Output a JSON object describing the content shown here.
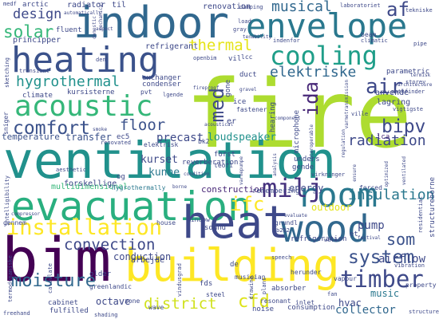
{
  "words": [
    {
      "text": "fire",
      "color": "#addc30"
    },
    {
      "text": "ventilation",
      "color": "#21918c"
    },
    {
      "text": "evacuation",
      "color": "#29af7f"
    },
    {
      "text": "indoor",
      "color": "#31688e"
    },
    {
      "text": "heating",
      "color": "#3b528b"
    },
    {
      "text": "envelope",
      "color": "#2a788e"
    },
    {
      "text": "bim",
      "color": "#440154"
    },
    {
      "text": "building",
      "color": "#fde725"
    },
    {
      "text": "heat",
      "color": "#3e4989"
    },
    {
      "text": "wood",
      "color": "#31688e"
    },
    {
      "text": "acoustic",
      "color": "#35b779"
    },
    {
      "text": "room",
      "color": "#2a788e"
    },
    {
      "text": "cooling",
      "color": "#1f9e89"
    },
    {
      "text": "installation",
      "color": "#fde725"
    },
    {
      "text": "comfort",
      "color": "#3b528b"
    },
    {
      "text": "timber",
      "color": "#3e4989"
    },
    {
      "text": "moisture",
      "color": "#31688e"
    },
    {
      "text": "system",
      "color": "#3b528b"
    },
    {
      "text": "district",
      "color": "#d0e11c"
    },
    {
      "text": "cfd",
      "color": "#dde318"
    },
    {
      "text": "hygrothermal",
      "color": "#21918c"
    },
    {
      "text": "air",
      "color": "#3e4989"
    },
    {
      "text": "solar",
      "color": "#35b779"
    },
    {
      "text": "design",
      "color": "#3e4989"
    },
    {
      "text": "musical",
      "color": "#31688e"
    },
    {
      "text": "thermal",
      "color": "#e5e419"
    },
    {
      "text": "elektriske",
      "color": "#31688e"
    },
    {
      "text": "floor",
      "color": "#3b528b"
    },
    {
      "text": "bipv",
      "color": "#3e4989"
    },
    {
      "text": "radiation",
      "color": "#3e4989"
    },
    {
      "text": "insulation",
      "color": "#2a788e"
    },
    {
      "text": "convection",
      "color": "#3e4989"
    },
    {
      "text": "milj",
      "color": "#46327e"
    },
    {
      "text": "ifc",
      "color": "#fde725"
    },
    {
      "text": "af",
      "color": "#3e4989"
    },
    {
      "text": "ida",
      "color": "#482878"
    },
    {
      "text": "med",
      "color": "#3e4989"
    },
    {
      "text": "som",
      "color": "#3b528b"
    },
    {
      "text": "pump",
      "color": "#3e4989"
    },
    {
      "text": "airflow",
      "color": "#3e4989"
    },
    {
      "text": "collector",
      "color": "#31688e"
    },
    {
      "text": "loudspeaker",
      "color": "#21918c"
    },
    {
      "text": "precast",
      "color": "#3e4989"
    },
    {
      "text": "kurset",
      "color": "#3e4989"
    },
    {
      "text": "kunne",
      "color": "#2a788e"
    },
    {
      "text": "transfer",
      "color": "#3b528b"
    },
    {
      "text": "temperature",
      "color": "#3b528b"
    },
    {
      "text": "conduction",
      "color": "#3e4989"
    },
    {
      "text": "octave",
      "color": "#3e4989"
    },
    {
      "text": "music",
      "color": "#2a788e"
    },
    {
      "text": "hvac",
      "color": "#3e4989"
    },
    {
      "text": "outdoor",
      "color": "#e5e419"
    },
    {
      "text": "energy",
      "color": "#3e4989"
    },
    {
      "text": "construction",
      "color": "#482878"
    },
    {
      "text": "renovation",
      "color": "#3e4989"
    },
    {
      "text": "refrigerant",
      "color": "#3e4989"
    },
    {
      "text": "principper",
      "color": "#3e4989"
    },
    {
      "text": "radiator",
      "color": "#3e4989"
    },
    {
      "text": "arctic",
      "color": "#3e4989"
    },
    {
      "text": "multidimensional",
      "color": "#35b779"
    },
    {
      "text": "forskellige",
      "color": "#3e4989"
    },
    {
      "text": "hygrothermally",
      "color": "#2a788e"
    },
    {
      "text": "lca",
      "color": "#482878"
    },
    {
      "text": "lagring",
      "color": "#3e4989"
    },
    {
      "text": "anvende",
      "color": "#3e4989"
    },
    {
      "text": "parametric",
      "color": "#3e4989"
    },
    {
      "text": "climate",
      "color": "#3e4989"
    },
    {
      "text": "kursisterne",
      "color": "#3e4989"
    },
    {
      "text": "exchanger",
      "color": "#3e4989"
    },
    {
      "text": "condenser",
      "color": "#3e4989"
    },
    {
      "text": "fluent",
      "color": "#3e4989"
    },
    {
      "text": "beam",
      "color": "#3e4989"
    },
    {
      "text": "tekniske",
      "color": "#3e4989"
    },
    {
      "text": "pathfinder",
      "color": "#3e4989"
    },
    {
      "text": "vigtigste",
      "color": "#3e4989"
    },
    {
      "text": "storey",
      "color": "#3e4989"
    },
    {
      "text": "reverberation",
      "color": "#3e4989"
    },
    {
      "text": "remembering",
      "color": "#3e4989"
    },
    {
      "text": "refrigeration",
      "color": "#3e4989"
    },
    {
      "text": "absorber",
      "color": "#3e4989"
    },
    {
      "text": "consumption",
      "color": "#3e4989"
    },
    {
      "text": "noise",
      "color": "#3e4989"
    },
    {
      "text": "sound",
      "color": "#3e4989"
    },
    {
      "text": "window",
      "color": "#3e4989"
    },
    {
      "text": "house",
      "color": "#3e4989"
    },
    {
      "text": "grundl",
      "color": "#3e4989"
    },
    {
      "text": "older",
      "color": "#3e4989"
    },
    {
      "text": "cabinet",
      "color": "#3e4989"
    },
    {
      "text": "fulfilled",
      "color": "#3e4989"
    },
    {
      "text": "greenlandic",
      "color": "#3e4989"
    },
    {
      "text": "wave",
      "color": "#3e4989"
    },
    {
      "text": "zone",
      "color": "#3e4989"
    },
    {
      "text": "steel",
      "color": "#3e4989"
    },
    {
      "text": "fds",
      "color": "#3e4989"
    },
    {
      "text": "resonant",
      "color": "#3e4989"
    },
    {
      "text": "musician",
      "color": "#3e4989"
    },
    {
      "text": "inlet",
      "color": "#3e4989"
    },
    {
      "text": "vapour",
      "color": "#3e4989"
    },
    {
      "text": "property",
      "color": "#3e4989"
    },
    {
      "text": "vibration",
      "color": "#3e4989"
    },
    {
      "text": "structureborne",
      "color": "#3e4989"
    },
    {
      "text": "forced",
      "color": "#3e4989"
    },
    {
      "text": "duct",
      "color": "#3e4989"
    },
    {
      "text": "ice",
      "color": "#3e4989"
    },
    {
      "text": "fastener",
      "color": "#3e4989"
    },
    {
      "text": "unders",
      "color": "#3e4989"
    },
    {
      "text": "gende",
      "color": "#3e4989"
    },
    {
      "text": "virkninger",
      "color": "#3e4989"
    },
    {
      "text": "teori",
      "color": "#3e4989"
    },
    {
      "text": "forst",
      "color": "#3e4989"
    },
    {
      "text": "elektrisk",
      "color": "#3e4989"
    },
    {
      "text": "gone",
      "color": "#3e4989"
    },
    {
      "text": "hearing",
      "color": "#3e4989"
    },
    {
      "text": "microphone",
      "color": "#3e4989"
    },
    {
      "text": "og",
      "color": "#3e4989"
    },
    {
      "text": "et",
      "color": "#3e4989"
    },
    {
      "text": "er",
      "color": "#3e4989"
    },
    {
      "text": "de",
      "color": "#3e4989"
    },
    {
      "text": "ec5",
      "color": "#3e4989"
    },
    {
      "text": "bk2",
      "color": "#3e4989"
    },
    {
      "text": "vil",
      "color": "#3e4989"
    },
    {
      "text": "lcc",
      "color": "#3e4989"
    },
    {
      "text": "pvt",
      "color": "#3e4989"
    },
    {
      "text": "til",
      "color": "#3e4989"
    },
    {
      "text": "fan",
      "color": "#3e4989"
    },
    {
      "text": "water",
      "color": "#3e4989"
    },
    {
      "text": "openbim",
      "color": "#3e4989"
    },
    {
      "text": "den",
      "color": "#3e4989"
    },
    {
      "text": "gray",
      "color": "#3e4989"
    },
    {
      "text": "load",
      "color": "#3e4989"
    },
    {
      "text": "pipe",
      "color": "#3e4989"
    },
    {
      "text": "indenfor",
      "color": "#3e4989"
    },
    {
      "text": "climatic",
      "color": "#3e4989"
    },
    {
      "text": "laboratoriet",
      "color": "#3e4989"
    },
    {
      "text": "damping",
      "color": "#3e4989"
    },
    {
      "text": "ville",
      "color": "#3e4989"
    },
    {
      "text": "transient",
      "color": "#3e4989"
    },
    {
      "text": "sketching",
      "color": "#3e4989"
    },
    {
      "text": "aesthetic",
      "color": "#3e4989"
    },
    {
      "text": "intelligibility",
      "color": "#3e4989"
    },
    {
      "text": "renovated",
      "color": "#3e4989"
    },
    {
      "text": "gennem",
      "color": "#3e4989"
    },
    {
      "text": "termodynamiske",
      "color": "#3e4989"
    },
    {
      "text": "calculate",
      "color": "#3e4989"
    },
    {
      "text": "medf",
      "color": "#3e4989"
    },
    {
      "text": "sniger",
      "color": "#3e4989"
    },
    {
      "text": "arbejde",
      "color": "#3e4989"
    },
    {
      "text": "herunder",
      "color": "#3e4989"
    },
    {
      "text": "festival",
      "color": "#3e4989"
    },
    {
      "text": "residential",
      "color": "#3e4989"
    },
    {
      "text": "structure",
      "color": "#3e4989"
    },
    {
      "text": "speech",
      "color": "#3e4989"
    },
    {
      "text": "plant",
      "color": "#3e4989"
    },
    {
      "text": "b282",
      "color": "#3e4989"
    },
    {
      "text": "compressor",
      "color": "#3e4989"
    },
    {
      "text": "freehand",
      "color": "#3e4989"
    },
    {
      "text": "vindusgrad",
      "color": "#3e4989"
    },
    {
      "text": "drawing",
      "color": "#3e4989"
    },
    {
      "text": "domestic",
      "color": "#3e4989"
    },
    {
      "text": "mechanical",
      "color": "#3e4989"
    },
    {
      "text": "shading",
      "color": "#3e4989"
    },
    {
      "text": "smoke",
      "color": "#3e4989"
    },
    {
      "text": "automatically",
      "color": "#3e4989"
    },
    {
      "text": "tenability",
      "color": "#3e4989"
    },
    {
      "text": "lgende",
      "color": "#3e4989"
    },
    {
      "text": "component",
      "color": "#3e4989"
    },
    {
      "text": "termisk",
      "color": "#3e4989"
    },
    {
      "text": "architecture",
      "color": "#3e4989"
    },
    {
      "text": "interoperable",
      "color": "#3e4989"
    },
    {
      "text": "regulation",
      "color": "#3e4989"
    },
    {
      "text": "varmetransmission",
      "color": "#3e4989"
    },
    {
      "text": "analysis",
      "color": "#3e4989"
    },
    {
      "text": "varmepumpe",
      "color": "#3e4989"
    },
    {
      "text": "condition",
      "color": "#3e4989"
    },
    {
      "text": "fireproof",
      "color": "#3e4989"
    },
    {
      "text": "borne",
      "color": "#3e4989"
    },
    {
      "text": "acoustical",
      "color": "#3e4989"
    },
    {
      "text": "evaluate",
      "color": "#3e4989"
    },
    {
      "text": "ensure",
      "color": "#3e4989"
    },
    {
      "text": "optimized",
      "color": "#3e4989"
    },
    {
      "text": "ventilated",
      "color": "#3e4989"
    },
    {
      "text": "gravel",
      "color": "#3e4989"
    },
    {
      "text": "aspect",
      "color": "#3e4989"
    }
  ]
}
